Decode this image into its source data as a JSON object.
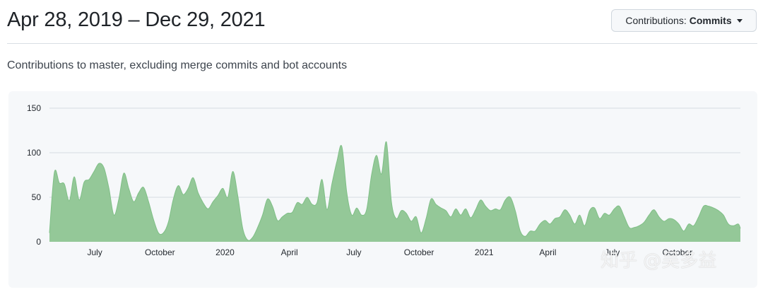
{
  "header": {
    "range_title": "Apr 28, 2019 – Dec 29, 2021",
    "contrib_label": "Contributions:",
    "contrib_value": "Commits"
  },
  "subtitle": "Contributions to master, excluding merge commits and bot accounts",
  "watermark": "知乎 @吴多益",
  "colors": {
    "area_fill": "#94c898",
    "area_stroke": "#7fbf86",
    "grid": "#d5dbe1",
    "tick_text": "#24292f"
  },
  "chart_data": {
    "type": "area",
    "title": "",
    "xlabel": "",
    "ylabel": "",
    "x_range": [
      "2019-04-28",
      "2021-12-29"
    ],
    "ylim": [
      0,
      150
    ],
    "y_ticks": [
      0,
      50,
      100,
      150
    ],
    "x_ticks": [
      {
        "date": "2019-07-01",
        "label": "July"
      },
      {
        "date": "2019-10-01",
        "label": "October"
      },
      {
        "date": "2020-01-01",
        "label": "2020"
      },
      {
        "date": "2020-04-01",
        "label": "April"
      },
      {
        "date": "2020-07-01",
        "label": "July"
      },
      {
        "date": "2020-10-01",
        "label": "October"
      },
      {
        "date": "2021-01-01",
        "label": "2021"
      },
      {
        "date": "2021-04-01",
        "label": "April"
      },
      {
        "date": "2021-07-01",
        "label": "July"
      },
      {
        "date": "2021-10-01",
        "label": "October"
      }
    ],
    "grid": true,
    "legend": "none",
    "series": [
      {
        "points": [
          [
            "2019-04-28",
            10
          ],
          [
            "2019-05-05",
            78
          ],
          [
            "2019-05-12",
            66
          ],
          [
            "2019-05-19",
            65
          ],
          [
            "2019-05-26",
            46
          ],
          [
            "2019-06-02",
            73
          ],
          [
            "2019-06-09",
            47
          ],
          [
            "2019-06-16",
            67
          ],
          [
            "2019-06-23",
            70
          ],
          [
            "2019-06-30",
            79
          ],
          [
            "2019-07-07",
            88
          ],
          [
            "2019-07-14",
            83
          ],
          [
            "2019-07-21",
            60
          ],
          [
            "2019-07-28",
            30
          ],
          [
            "2019-08-04",
            48
          ],
          [
            "2019-08-11",
            77
          ],
          [
            "2019-08-18",
            60
          ],
          [
            "2019-08-25",
            45
          ],
          [
            "2019-09-01",
            55
          ],
          [
            "2019-09-08",
            61
          ],
          [
            "2019-09-15",
            45
          ],
          [
            "2019-09-22",
            25
          ],
          [
            "2019-09-29",
            10
          ],
          [
            "2019-10-06",
            10
          ],
          [
            "2019-10-13",
            22
          ],
          [
            "2019-10-20",
            48
          ],
          [
            "2019-10-27",
            63
          ],
          [
            "2019-11-03",
            53
          ],
          [
            "2019-11-10",
            60
          ],
          [
            "2019-11-17",
            72
          ],
          [
            "2019-11-24",
            55
          ],
          [
            "2019-12-01",
            44
          ],
          [
            "2019-12-08",
            37
          ],
          [
            "2019-12-15",
            45
          ],
          [
            "2019-12-22",
            52
          ],
          [
            "2019-12-29",
            60
          ],
          [
            "2020-01-05",
            50
          ],
          [
            "2020-01-12",
            79
          ],
          [
            "2020-01-19",
            52
          ],
          [
            "2020-01-26",
            15
          ],
          [
            "2020-02-02",
            2
          ],
          [
            "2020-02-09",
            5
          ],
          [
            "2020-02-16",
            16
          ],
          [
            "2020-02-23",
            30
          ],
          [
            "2020-03-01",
            48
          ],
          [
            "2020-03-08",
            40
          ],
          [
            "2020-03-15",
            24
          ],
          [
            "2020-03-22",
            28
          ],
          [
            "2020-03-29",
            32
          ],
          [
            "2020-04-05",
            33
          ],
          [
            "2020-04-12",
            44
          ],
          [
            "2020-04-19",
            42
          ],
          [
            "2020-04-26",
            50
          ],
          [
            "2020-05-03",
            42
          ],
          [
            "2020-05-10",
            44
          ],
          [
            "2020-05-17",
            70
          ],
          [
            "2020-05-24",
            36
          ],
          [
            "2020-05-31",
            65
          ],
          [
            "2020-06-07",
            90
          ],
          [
            "2020-06-14",
            107
          ],
          [
            "2020-06-21",
            55
          ],
          [
            "2020-06-28",
            30
          ],
          [
            "2020-07-05",
            38
          ],
          [
            "2020-07-12",
            30
          ],
          [
            "2020-07-19",
            36
          ],
          [
            "2020-07-26",
            75
          ],
          [
            "2020-08-02",
            97
          ],
          [
            "2020-08-09",
            76
          ],
          [
            "2020-08-16",
            112
          ],
          [
            "2020-08-23",
            45
          ],
          [
            "2020-08-30",
            26
          ],
          [
            "2020-09-06",
            35
          ],
          [
            "2020-09-13",
            32
          ],
          [
            "2020-09-20",
            23
          ],
          [
            "2020-09-27",
            28
          ],
          [
            "2020-10-04",
            10
          ],
          [
            "2020-10-11",
            26
          ],
          [
            "2020-10-18",
            48
          ],
          [
            "2020-10-25",
            42
          ],
          [
            "2020-11-01",
            38
          ],
          [
            "2020-11-08",
            35
          ],
          [
            "2020-11-15",
            28
          ],
          [
            "2020-11-22",
            37
          ],
          [
            "2020-11-29",
            30
          ],
          [
            "2020-12-06",
            37
          ],
          [
            "2020-12-13",
            27
          ],
          [
            "2020-12-20",
            36
          ],
          [
            "2020-12-27",
            47
          ],
          [
            "2021-01-03",
            40
          ],
          [
            "2021-01-10",
            35
          ],
          [
            "2021-01-17",
            37
          ],
          [
            "2021-01-24",
            36
          ],
          [
            "2021-01-31",
            47
          ],
          [
            "2021-02-07",
            50
          ],
          [
            "2021-02-14",
            35
          ],
          [
            "2021-02-21",
            12
          ],
          [
            "2021-02-28",
            6
          ],
          [
            "2021-03-07",
            12
          ],
          [
            "2021-03-14",
            12
          ],
          [
            "2021-03-21",
            20
          ],
          [
            "2021-03-28",
            24
          ],
          [
            "2021-04-04",
            20
          ],
          [
            "2021-04-11",
            26
          ],
          [
            "2021-04-18",
            28
          ],
          [
            "2021-04-25",
            36
          ],
          [
            "2021-05-02",
            30
          ],
          [
            "2021-05-09",
            20
          ],
          [
            "2021-05-16",
            30
          ],
          [
            "2021-05-23",
            18
          ],
          [
            "2021-05-30",
            35
          ],
          [
            "2021-06-06",
            38
          ],
          [
            "2021-06-13",
            26
          ],
          [
            "2021-06-20",
            32
          ],
          [
            "2021-06-27",
            30
          ],
          [
            "2021-07-04",
            37
          ],
          [
            "2021-07-11",
            40
          ],
          [
            "2021-07-18",
            28
          ],
          [
            "2021-07-25",
            16
          ],
          [
            "2021-08-01",
            16
          ],
          [
            "2021-08-08",
            18
          ],
          [
            "2021-08-15",
            22
          ],
          [
            "2021-08-22",
            30
          ],
          [
            "2021-08-29",
            36
          ],
          [
            "2021-09-05",
            28
          ],
          [
            "2021-09-12",
            23
          ],
          [
            "2021-09-19",
            26
          ],
          [
            "2021-09-26",
            25
          ],
          [
            "2021-10-03",
            20
          ],
          [
            "2021-10-10",
            12
          ],
          [
            "2021-10-17",
            20
          ],
          [
            "2021-10-24",
            18
          ],
          [
            "2021-10-31",
            28
          ],
          [
            "2021-11-07",
            40
          ],
          [
            "2021-11-14",
            40
          ],
          [
            "2021-11-21",
            38
          ],
          [
            "2021-11-28",
            35
          ],
          [
            "2021-12-05",
            30
          ],
          [
            "2021-12-12",
            20
          ],
          [
            "2021-12-19",
            18
          ],
          [
            "2021-12-26",
            20
          ],
          [
            "2021-12-29",
            15
          ]
        ]
      }
    ]
  }
}
